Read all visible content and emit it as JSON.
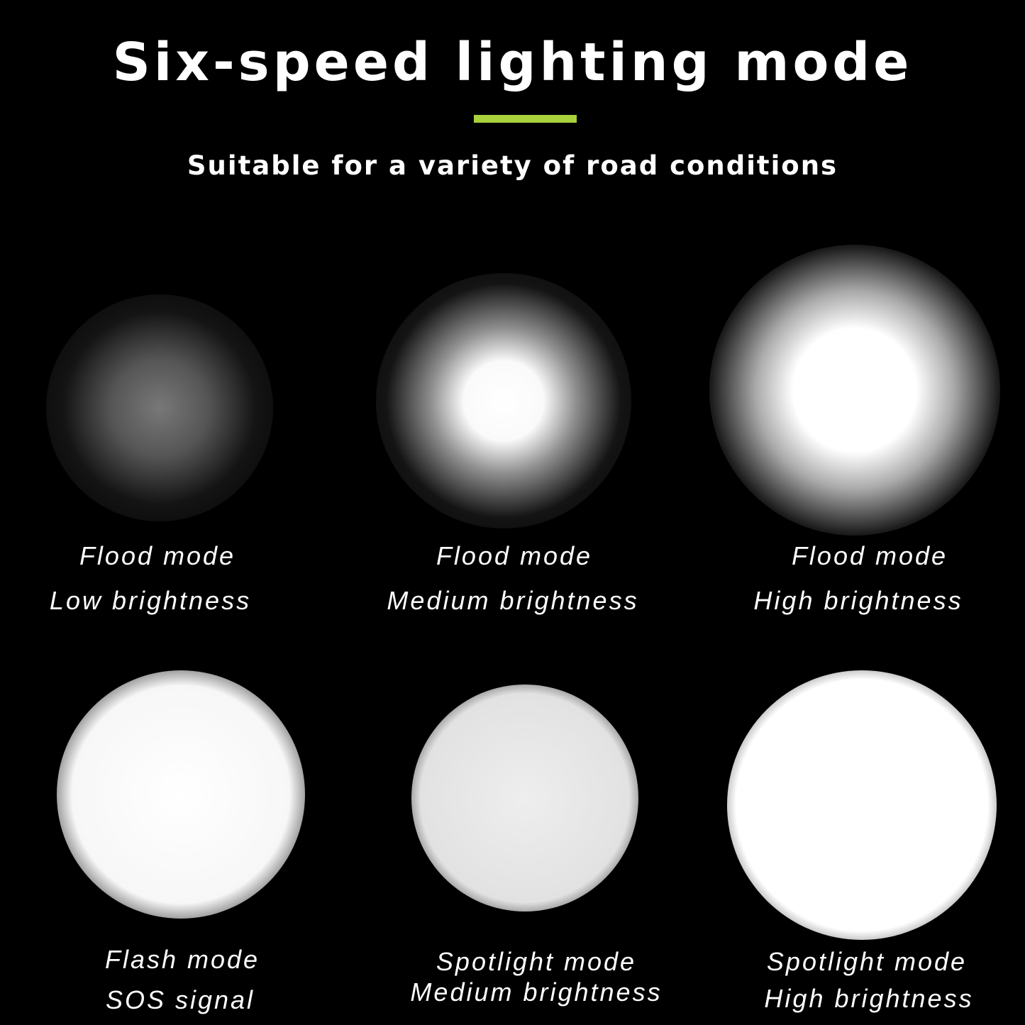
{
  "title": "Six-speed lighting mode",
  "subtitle": "Suitable for a variety of road conditions",
  "accent_color": "#a8d13c",
  "modes": [
    {
      "mode": "Flood mode",
      "detail": "Low brightness"
    },
    {
      "mode": "Flood mode",
      "detail": "Medium brightness"
    },
    {
      "mode": "Flood mode",
      "detail": "High brightness"
    },
    {
      "mode": "Flash mode",
      "detail": "SOS signal"
    },
    {
      "mode": "Spotlight mode",
      "detail": "Medium brightness"
    },
    {
      "mode": "Spotlight mode",
      "detail": "High brightness"
    }
  ]
}
